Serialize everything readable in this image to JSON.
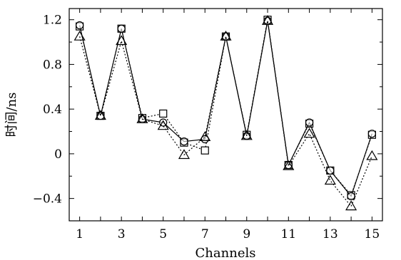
{
  "chart_data": {
    "type": "line",
    "title": "",
    "xlabel": "Channels",
    "ylabel": "时间/ns",
    "xlim": [
      0.5,
      15.5
    ],
    "ylim": [
      -0.6,
      1.3
    ],
    "x_ticks": [
      1,
      3,
      5,
      7,
      9,
      11,
      13,
      15
    ],
    "x_tick_labels": [
      "1",
      "3",
      "5",
      "7",
      "9",
      "11",
      "13",
      "15"
    ],
    "y_ticks": [
      -0.4,
      0,
      0.4,
      0.8,
      1.2
    ],
    "y_tick_labels": [
      "−0.4",
      "0",
      "0.4",
      "0.8",
      "1.2"
    ],
    "grid": false,
    "x": [
      1,
      2,
      3,
      4,
      5,
      6,
      7,
      8,
      9,
      10,
      11,
      12,
      13,
      14,
      15
    ],
    "series": [
      {
        "marker": "square",
        "line": "dotted",
        "values": [
          1.14,
          0.34,
          1.12,
          0.32,
          0.36,
          0.1,
          0.03,
          1.05,
          0.17,
          1.2,
          -0.1,
          0.27,
          -0.15,
          -0.37,
          0.17
        ]
      },
      {
        "marker": "circle",
        "line": "solid",
        "values": [
          1.15,
          0.34,
          1.12,
          0.31,
          0.28,
          0.11,
          0.13,
          1.05,
          0.16,
          1.19,
          -0.1,
          0.28,
          -0.15,
          -0.38,
          0.18
        ]
      },
      {
        "marker": "triangle",
        "line": "dotted",
        "values": [
          1.05,
          0.34,
          1.01,
          0.31,
          0.25,
          -0.01,
          0.15,
          1.05,
          0.16,
          1.19,
          -0.11,
          0.18,
          -0.24,
          -0.47,
          -0.02
        ]
      }
    ]
  }
}
